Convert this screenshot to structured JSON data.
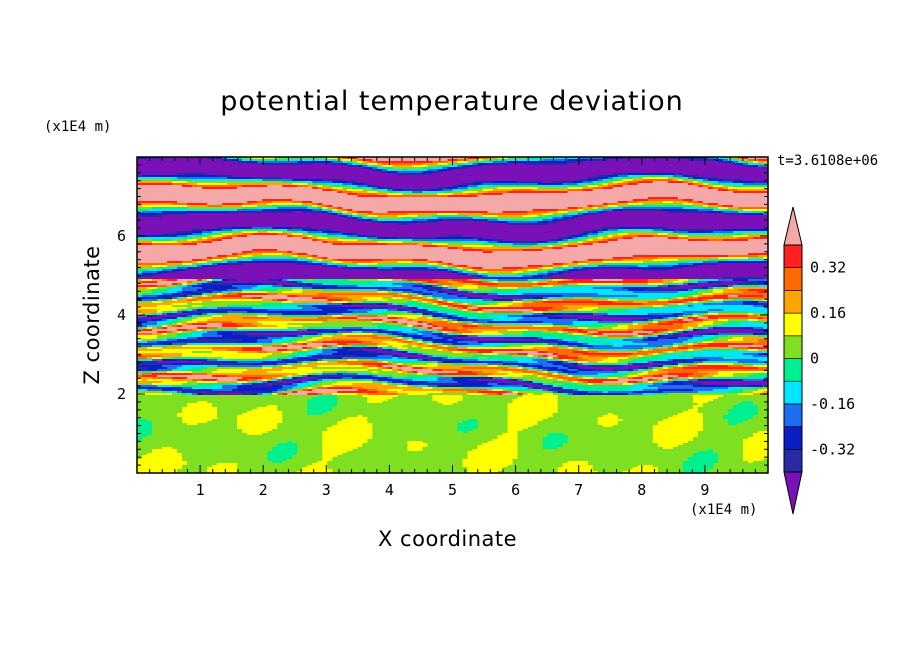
{
  "chart_data": {
    "type": "heatmap",
    "title": "potential temperature deviation",
    "xlabel": "X coordinate",
    "ylabel": "Z coordinate",
    "x_unit_label": "(x1E4 m)",
    "y_unit_label": "(x1E4 m)",
    "time_label": "t=3.6108e+06",
    "xlim": [
      0,
      10
    ],
    "ylim": [
      0,
      8
    ],
    "x_ticks": [
      "1",
      "2",
      "3",
      "4",
      "5",
      "6",
      "7",
      "8",
      "9"
    ],
    "y_ticks": [
      "2",
      "4",
      "6"
    ],
    "colorbar": {
      "tick_labels": [
        "0.32",
        "0.16",
        "0",
        "-0.16",
        "-0.32"
      ],
      "tick_values": [
        0.32,
        0.16,
        0,
        -0.16,
        -0.32
      ],
      "levels": [
        -0.4,
        -0.32,
        -0.24,
        -0.16,
        -0.08,
        0,
        0.08,
        0.16,
        0.24,
        0.32,
        0.4
      ],
      "colors": [
        "#7a10b8",
        "#2a2aa6",
        "#0a1ec8",
        "#1e6ef0",
        "#00e6ff",
        "#00f090",
        "#7ee020",
        "#ffff00",
        "#ffa500",
        "#ff6a00",
        "#ff2020",
        "#f5a8a8"
      ],
      "extend": "both"
    },
    "layers": [
      {
        "z": [
          0,
          2
        ],
        "pattern": "smooth green/lime plumes, near-zero deviation"
      },
      {
        "z": [
          2,
          5
        ],
        "pattern": "thin wavy bands spanning the full color range"
      },
      {
        "z": [
          5,
          8
        ],
        "pattern": "alternating purple (below -0.4) and pink (above 0.4) layers"
      }
    ]
  }
}
